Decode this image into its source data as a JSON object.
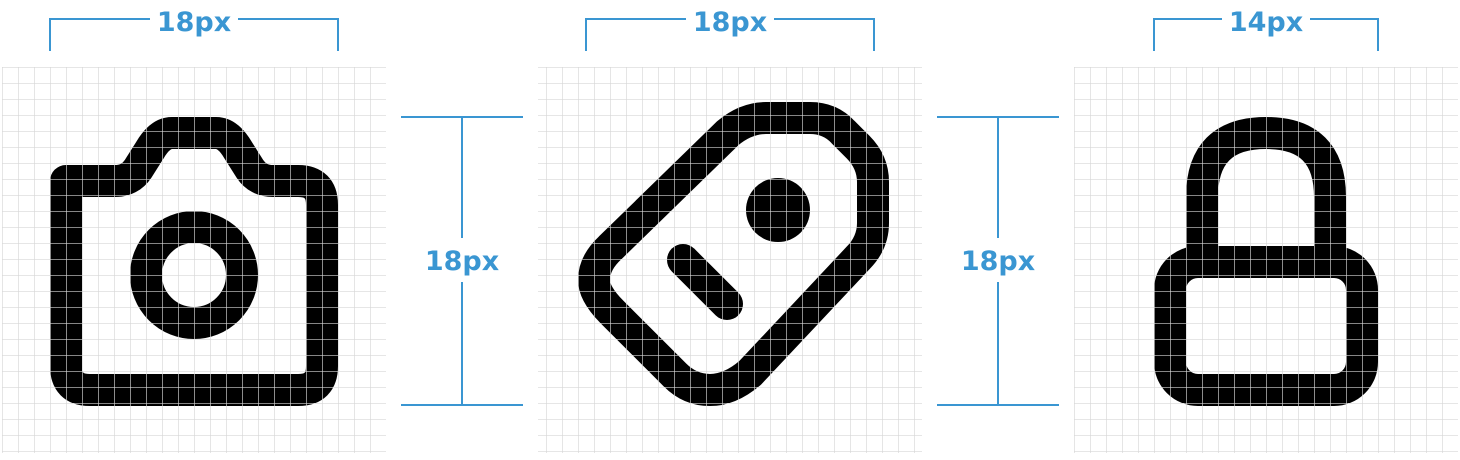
{
  "colors": {
    "dimension": "#3a96d2",
    "grid": "#d7d7d7",
    "icon": "#000000",
    "background": "#ffffff"
  },
  "icons": [
    {
      "name": "camera-icon",
      "width_label": "18px"
    },
    {
      "name": "tag-icon",
      "width_label": "18px"
    },
    {
      "name": "lock-icon",
      "width_label": "14px"
    }
  ],
  "height_labels": [
    "18px",
    "18px"
  ]
}
